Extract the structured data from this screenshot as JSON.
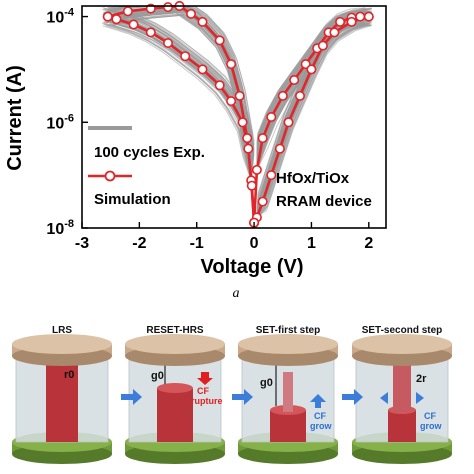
{
  "chart_data": {
    "type": "line",
    "xlabel": "Voltage (V)",
    "ylabel": "Current (A)",
    "xlim": [
      -3,
      2.3
    ],
    "ylim_log10": [
      -8,
      -3.8
    ],
    "y_scale": "log",
    "x_ticks": [
      -3,
      -2,
      -1,
      0,
      1,
      2
    ],
    "x_tick_labels": [
      "-3",
      "-2",
      "-1",
      "0",
      "1",
      "2"
    ],
    "y_ticks": [
      -8,
      -6,
      -4
    ],
    "y_tick_labels": [
      {
        "base": "10",
        "exp": "-8"
      },
      {
        "base": "10",
        "exp": "-6"
      },
      {
        "base": "10",
        "exp": "-4"
      }
    ],
    "series": [
      {
        "name": "100 cycles Exp.",
        "color": "#9a9a9a",
        "kind": "band",
        "cycles": 100
      },
      {
        "name": "Simulation",
        "color": "#e0262b",
        "kind": "line-markers",
        "branches": [
          [
            [
              0,
              -7.9
            ],
            [
              0.05,
              -6.9
            ],
            [
              0.15,
              -6.3
            ],
            [
              0.3,
              -5.9
            ],
            [
              0.5,
              -5.5
            ],
            [
              0.7,
              -5.2
            ],
            [
              0.9,
              -4.9
            ],
            [
              1.1,
              -4.6
            ],
            [
              1.3,
              -4.3
            ],
            [
              1.5,
              -4.1
            ],
            [
              1.7,
              -4.02
            ],
            [
              1.85,
              -4.0
            ],
            [
              2.0,
              -4.0
            ]
          ],
          [
            [
              2.0,
              -4.0
            ],
            [
              1.7,
              -4.1
            ],
            [
              1.4,
              -4.3
            ],
            [
              1.2,
              -4.55
            ],
            [
              1.0,
              -5.0
            ],
            [
              0.8,
              -5.5
            ],
            [
              0.6,
              -6.0
            ],
            [
              0.45,
              -6.5
            ],
            [
              0.3,
              -7.0
            ],
            [
              0.15,
              -7.5
            ],
            [
              0.05,
              -7.8
            ],
            [
              0,
              -7.9
            ]
          ],
          [
            [
              0,
              -7.9
            ],
            [
              -0.05,
              -7.1
            ],
            [
              -0.1,
              -6.5
            ],
            [
              -0.2,
              -6.0
            ],
            [
              -0.4,
              -5.6
            ],
            [
              -0.6,
              -5.3
            ],
            [
              -0.9,
              -5.0
            ],
            [
              -1.2,
              -4.75
            ],
            [
              -1.5,
              -4.5
            ],
            [
              -1.8,
              -4.3
            ],
            [
              -2.1,
              -4.15
            ],
            [
              -2.4,
              -4.05
            ],
            [
              -2.55,
              -4.0
            ]
          ],
          [
            [
              -2.55,
              -4.0
            ],
            [
              -2.2,
              -3.9
            ],
            [
              -1.8,
              -3.85
            ],
            [
              -1.5,
              -3.82
            ],
            [
              -1.3,
              -3.8
            ]
          ],
          [
            [
              -1.3,
              -3.8
            ],
            [
              -1.1,
              -3.95
            ],
            [
              -0.9,
              -4.1
            ],
            [
              -0.6,
              -4.45
            ],
            [
              -0.4,
              -4.9
            ],
            [
              -0.25,
              -5.5
            ],
            [
              -0.12,
              -6.3
            ],
            [
              -0.04,
              -7.2
            ],
            [
              0,
              -7.9
            ]
          ]
        ]
      }
    ],
    "legend": {
      "placement": "lower-left"
    },
    "annotation": [
      "HfOx/TiOx",
      "RRAM device"
    ],
    "caption": "a"
  },
  "diagram": {
    "panels": [
      {
        "title": "LRS",
        "label": "r0"
      },
      {
        "title": "RESET-HRS",
        "label": "g0",
        "cf_line1": "CF",
        "cf_line2": "rupture"
      },
      {
        "title": "SET-first step",
        "label": "g0",
        "cf_line1": "CF",
        "cf_line2": "grow"
      },
      {
        "title": "SET-second step",
        "label": "2r",
        "cf_line1": "CF",
        "cf_line2": "grow"
      }
    ]
  },
  "colors": {
    "gray_band": "#9a9a9a",
    "sim_red": "#e0262b",
    "top_electrode": "#c9a98a",
    "bottom_electrode": "#6f9a3a",
    "oxide_glass": "#d3dce0",
    "filament": "#b8343a",
    "arrow_blue": "#3b7dd8"
  }
}
